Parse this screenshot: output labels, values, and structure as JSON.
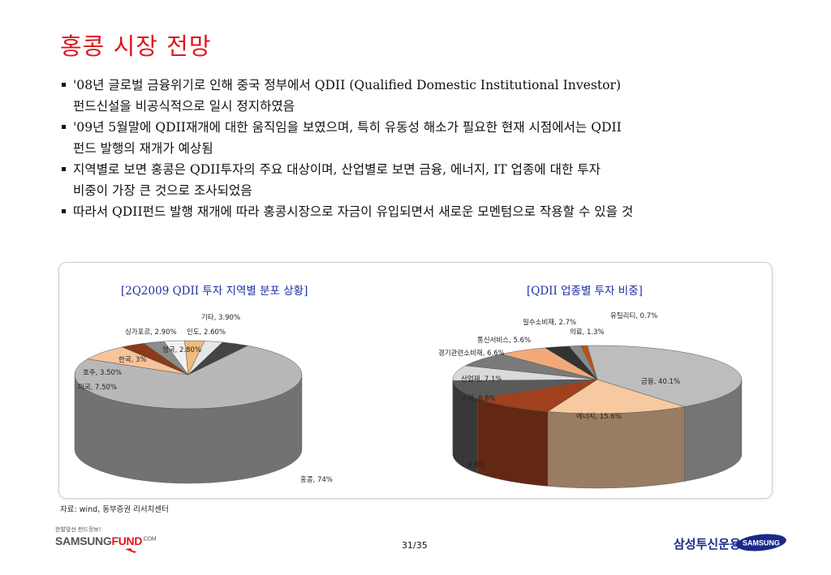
{
  "title": "홍콩 시장 전망",
  "bullets": [
    {
      "line1": "'08년 글로벌 금융위기로 인해 중국 정부에서 QDII (Qualified Domestic Institutional Investor)",
      "line2": "펀드신설을 비공식적으로 일시 정지하였음"
    },
    {
      "line1": "'09년 5월말에 QDII재개에 대한 움직임을 보였으며, 특히 유동성 해소가 필요한 현재 시점에서는 QDII",
      "line2": "펀드 발행의 재개가 예상됨"
    },
    {
      "line1": "지역별로 보면 홍콩은 QDII투자의 주요 대상이며, 산업별로 보면 금융, 에너지, IT 업종에 대한 투자",
      "line2": "비중이 가장 큰 것으로 조사되었음"
    },
    {
      "line1": "따라서 QDII펀드 발행 재개에 따라 홍콩시장으로 자금이 유입되면서 새로운 모멘텀으로 작용할 수 있을 것",
      "line2": ""
    }
  ],
  "chart_data": [
    {
      "type": "pie",
      "title": "[2Q2009 QDII 투자 지역별 분포 상황]",
      "slices": [
        {
          "label": "홍콩, 74%",
          "value": 74,
          "color": "#b8b8b8"
        },
        {
          "label": "미국, 7.50%",
          "value": 7.5,
          "color": "#f5c49a"
        },
        {
          "label": "호주, 3.50%",
          "value": 3.5,
          "color": "#8b3a1a"
        },
        {
          "label": "한국, 3%",
          "value": 3,
          "color": "#8c8c8c"
        },
        {
          "label": "싱가포르, 2.90%",
          "value": 2.9,
          "color": "#f2f2f2"
        },
        {
          "label": "영국, 2.80%",
          "value": 2.8,
          "color": "#f1b97c"
        },
        {
          "label": "인도, 2.60%",
          "value": 2.6,
          "color": "#e6e6e6"
        },
        {
          "label": "기타, 3.90%",
          "value": 3.9,
          "color": "#444444"
        }
      ]
    },
    {
      "type": "pie",
      "title": "[QDII 업종별 투자 비중]",
      "slices": [
        {
          "label": "금융, 40.1%",
          "value": 40.1,
          "color": "#bdbdbd"
        },
        {
          "label": "에너지, 15.6%",
          "value": 15.6,
          "color": "#f7c9a0"
        },
        {
          "label": "9.8%",
          "value": 9.8,
          "color": "#a0401c"
        },
        {
          "label": "소재, 8.8%",
          "value": 8.8,
          "color": "#5a5a5a"
        },
        {
          "label": "산업재, 7.1%",
          "value": 7.1,
          "color": "#d9d9d9"
        },
        {
          "label": "경기관련소비재, 6.6%",
          "value": 6.6,
          "color": "#7a7a7a"
        },
        {
          "label": "통신서비스, 5.6%",
          "value": 5.6,
          "color": "#f2a97a"
        },
        {
          "label": "필수소비재, 2.7%",
          "value": 2.7,
          "color": "#333333"
        },
        {
          "label": "의료, 1.3%",
          "value": 1.3,
          "color": "#8a8a8a"
        },
        {
          "label": "유틸리티, 0.7%",
          "value": 0.7,
          "color": "#c0501c"
        }
      ]
    }
  ],
  "source": "자료: wind, 동부증권 리서치센터",
  "footer": {
    "logo_small": "한발앞선 펀드정보!",
    "logo_main": "SAMSUNG",
    "logo_accent": "FUND",
    "logo_sup": ".COM",
    "page": "31/35",
    "brand_kr": "삼성투신운용",
    "brand_logo": "SAMSUNG"
  },
  "colors": {
    "title": "#e0151c",
    "chart_title": "#1b2fa6",
    "brand": "#1a2a8a"
  }
}
